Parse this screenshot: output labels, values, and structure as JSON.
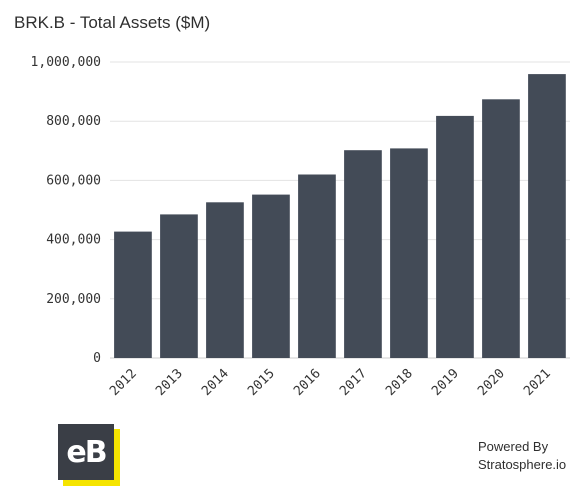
{
  "chart_data": {
    "type": "bar",
    "title": "BRK.B - Total Assets ($M)",
    "categories": [
      "2012",
      "2013",
      "2014",
      "2015",
      "2016",
      "2017",
      "2018",
      "2019",
      "2020",
      "2021"
    ],
    "values": [
      427000,
      485000,
      526000,
      552000,
      620000,
      702000,
      708000,
      818000,
      874000,
      959000
    ],
    "ylim": [
      0,
      1000000
    ],
    "yticks": [
      0,
      200000,
      400000,
      600000,
      800000,
      1000000
    ],
    "ytick_labels": [
      "0",
      "200,000",
      "400,000",
      "600,000",
      "800,000",
      "1,000,000"
    ],
    "xlabel": "",
    "ylabel": "",
    "grid": true,
    "bar_color": "#434b57"
  },
  "branding": {
    "logo_text": "eB",
    "powered_by": "Powered By",
    "company": "Stratosphere.io"
  }
}
